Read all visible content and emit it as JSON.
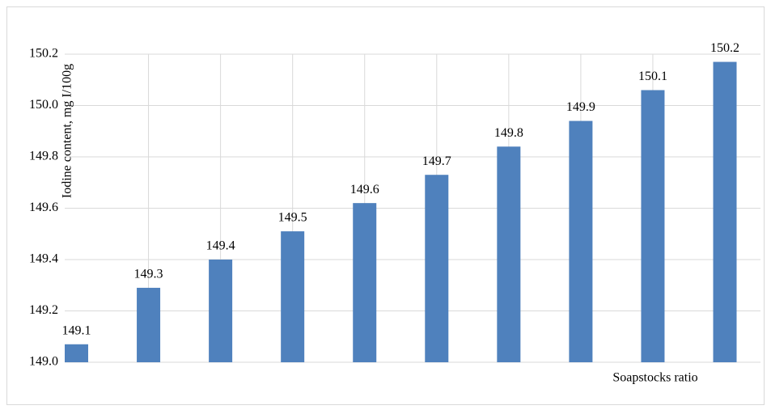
{
  "chart_data": {
    "type": "bar",
    "x_label": "Soapstocks ratio",
    "y_label": "Iodine content, mg I/100g",
    "categories": [
      null,
      null,
      null,
      null,
      null,
      null,
      null,
      null,
      null,
      null
    ],
    "values": [
      149.07,
      149.29,
      149.4,
      149.51,
      149.62,
      149.73,
      149.84,
      149.94,
      150.06,
      150.17
    ],
    "value_labels": [
      "149.1",
      "149.3",
      "149.4",
      "149.5",
      "149.6",
      "149.7",
      "149.8",
      "149.9",
      "150.1",
      "150.2"
    ],
    "color": "#4f81bd",
    "ylim": [
      149.0,
      150.2
    ],
    "yticks": [
      {
        "value": 149.0,
        "label": "149.0"
      },
      149.2,
      149.4,
      149.6,
      149.8,
      {
        "value": 150.0,
        "label": "150.0"
      },
      150.2
    ],
    "grid": true
  }
}
